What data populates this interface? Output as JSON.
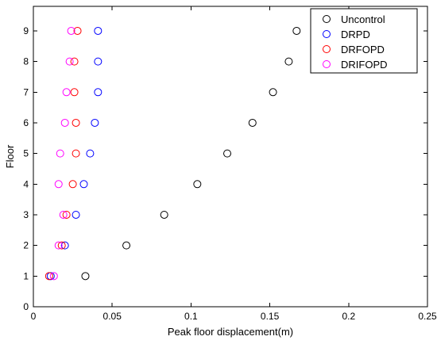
{
  "chart_data": {
    "type": "scatter",
    "xlabel": "Peak floor displacement(m)",
    "ylabel": "Floor",
    "xlim": [
      0,
      0.25
    ],
    "ylim": [
      0,
      9.8
    ],
    "xticks": [
      0,
      0.05,
      0.1,
      0.15,
      0.2,
      0.25
    ],
    "xtick_labels": [
      "0",
      "0.05",
      "0.1",
      "0.15",
      "0.2",
      "0.25"
    ],
    "yticks": [
      0,
      1,
      2,
      3,
      4,
      5,
      6,
      7,
      8,
      9
    ],
    "ytick_labels": [
      "0",
      "1",
      "2",
      "3",
      "4",
      "5",
      "6",
      "7",
      "8",
      "9"
    ],
    "grid": false,
    "legend_position": "top-right",
    "series": [
      {
        "name": "Uncontrol",
        "color": "#000000",
        "marker": "circle-open",
        "points": [
          {
            "x": 0.033,
            "y": 1
          },
          {
            "x": 0.059,
            "y": 2
          },
          {
            "x": 0.083,
            "y": 3
          },
          {
            "x": 0.104,
            "y": 4
          },
          {
            "x": 0.123,
            "y": 5
          },
          {
            "x": 0.139,
            "y": 6
          },
          {
            "x": 0.152,
            "y": 7
          },
          {
            "x": 0.162,
            "y": 8
          },
          {
            "x": 0.167,
            "y": 9
          }
        ]
      },
      {
        "name": "DRPD",
        "color": "#0000ff",
        "marker": "circle-open",
        "points": [
          {
            "x": 0.011,
            "y": 1
          },
          {
            "x": 0.02,
            "y": 2
          },
          {
            "x": 0.027,
            "y": 3
          },
          {
            "x": 0.032,
            "y": 4
          },
          {
            "x": 0.036,
            "y": 5
          },
          {
            "x": 0.039,
            "y": 6
          },
          {
            "x": 0.041,
            "y": 7
          },
          {
            "x": 0.041,
            "y": 8
          },
          {
            "x": 0.041,
            "y": 9
          }
        ]
      },
      {
        "name": "DRFOPD",
        "color": "#ff0000",
        "marker": "circle-open",
        "points": [
          {
            "x": 0.01,
            "y": 1
          },
          {
            "x": 0.018,
            "y": 2
          },
          {
            "x": 0.021,
            "y": 3
          },
          {
            "x": 0.025,
            "y": 4
          },
          {
            "x": 0.027,
            "y": 5
          },
          {
            "x": 0.027,
            "y": 6
          },
          {
            "x": 0.026,
            "y": 7
          },
          {
            "x": 0.026,
            "y": 8
          },
          {
            "x": 0.028,
            "y": 9
          }
        ]
      },
      {
        "name": "DRIFOPD",
        "color": "#ff00ff",
        "marker": "circle-open",
        "points": [
          {
            "x": 0.013,
            "y": 1
          },
          {
            "x": 0.016,
            "y": 2
          },
          {
            "x": 0.019,
            "y": 3
          },
          {
            "x": 0.016,
            "y": 4
          },
          {
            "x": 0.017,
            "y": 5
          },
          {
            "x": 0.02,
            "y": 6
          },
          {
            "x": 0.021,
            "y": 7
          },
          {
            "x": 0.023,
            "y": 8
          },
          {
            "x": 0.024,
            "y": 9
          }
        ]
      }
    ]
  }
}
